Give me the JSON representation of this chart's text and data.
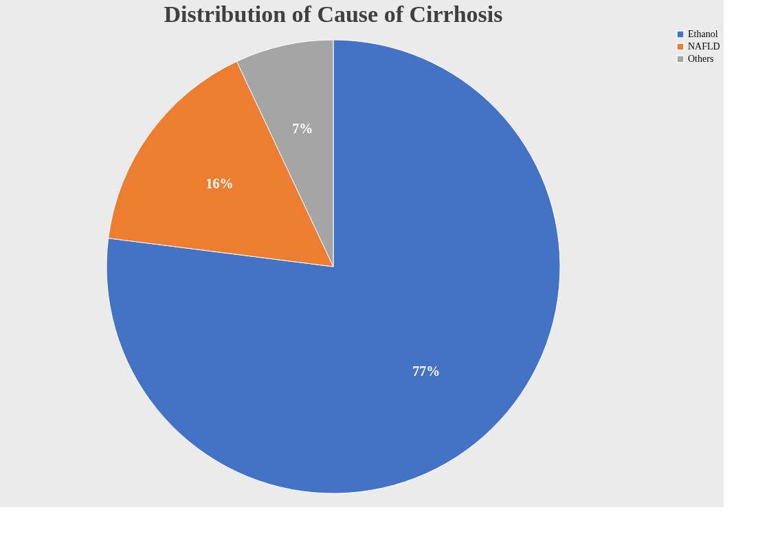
{
  "chart_data": {
    "type": "pie",
    "title": "Distribution of Cause of Cirrhosis",
    "categories": [
      "Ethanol",
      "NAFLD",
      "Others"
    ],
    "values": [
      77,
      16,
      7
    ],
    "colors": [
      "#4472c4",
      "#ed7d31",
      "#a5a5a5"
    ],
    "value_labels": [
      "77%",
      "16%",
      "7%"
    ],
    "legend": "right"
  }
}
